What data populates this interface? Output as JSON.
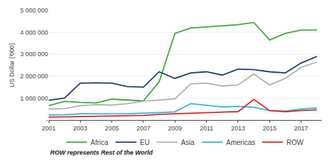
{
  "chart_data": {
    "type": "line",
    "x": [
      2001,
      2002,
      2003,
      2004,
      2005,
      2006,
      2007,
      2008,
      2009,
      2010,
      2011,
      2012,
      2013,
      2014,
      2015,
      2016,
      2017,
      2018
    ],
    "series": [
      {
        "name": "Africa",
        "color": "#3aaa35",
        "values": [
          650000,
          850000,
          800000,
          780000,
          950000,
          900000,
          870000,
          1750000,
          3950000,
          4200000,
          4250000,
          4300000,
          4350000,
          4450000,
          3650000,
          3950000,
          4100000,
          4100000
        ]
      },
      {
        "name": "EU",
        "color": "#1c3d6e",
        "values": [
          900000,
          1000000,
          1680000,
          1700000,
          1680000,
          1520000,
          1500000,
          2200000,
          1900000,
          2150000,
          2200000,
          2050000,
          2320000,
          2300000,
          2200000,
          2150000,
          2600000,
          2900000
        ]
      },
      {
        "name": "Asia",
        "color": "#b0b0b0",
        "values": [
          500000,
          520000,
          650000,
          700000,
          680000,
          750000,
          860000,
          900000,
          960000,
          1650000,
          1680000,
          1550000,
          1600000,
          2100000,
          1600000,
          1900000,
          2400000,
          2650000
        ]
      },
      {
        "name": "Americas",
        "color": "#29b6d8",
        "values": [
          230000,
          240000,
          280000,
          280000,
          300000,
          290000,
          310000,
          340000,
          370000,
          750000,
          670000,
          600000,
          620000,
          580000,
          430000,
          400000,
          500000,
          550000
        ]
      },
      {
        "name": "ROW",
        "color": "#dd2222",
        "values": [
          130000,
          140000,
          150000,
          160000,
          170000,
          190000,
          210000,
          260000,
          290000,
          310000,
          330000,
          360000,
          380000,
          940000,
          430000,
          380000,
          430000,
          460000
        ]
      }
    ],
    "ylabel": "US Dollar ('000)",
    "xlim": [
      2001,
      2018.3
    ],
    "xticks": [
      2001,
      2003,
      2005,
      2007,
      2009,
      2011,
      2013,
      2015,
      2017
    ],
    "ylim": [
      0,
      5000000
    ],
    "yticks": [
      {
        "value": 0,
        "label": "-"
      },
      {
        "value": 1000000,
        "label": "1 000 000"
      },
      {
        "value": 2000000,
        "label": "2 000 000"
      },
      {
        "value": 3000000,
        "label": "3 000 000"
      },
      {
        "value": 4000000,
        "label": "4 000 000"
      },
      {
        "value": 5000000,
        "label": "5 000 000"
      }
    ],
    "grid": "y",
    "legend": "bottom",
    "annotations": [
      "ROW represents Rest of the World"
    ]
  }
}
